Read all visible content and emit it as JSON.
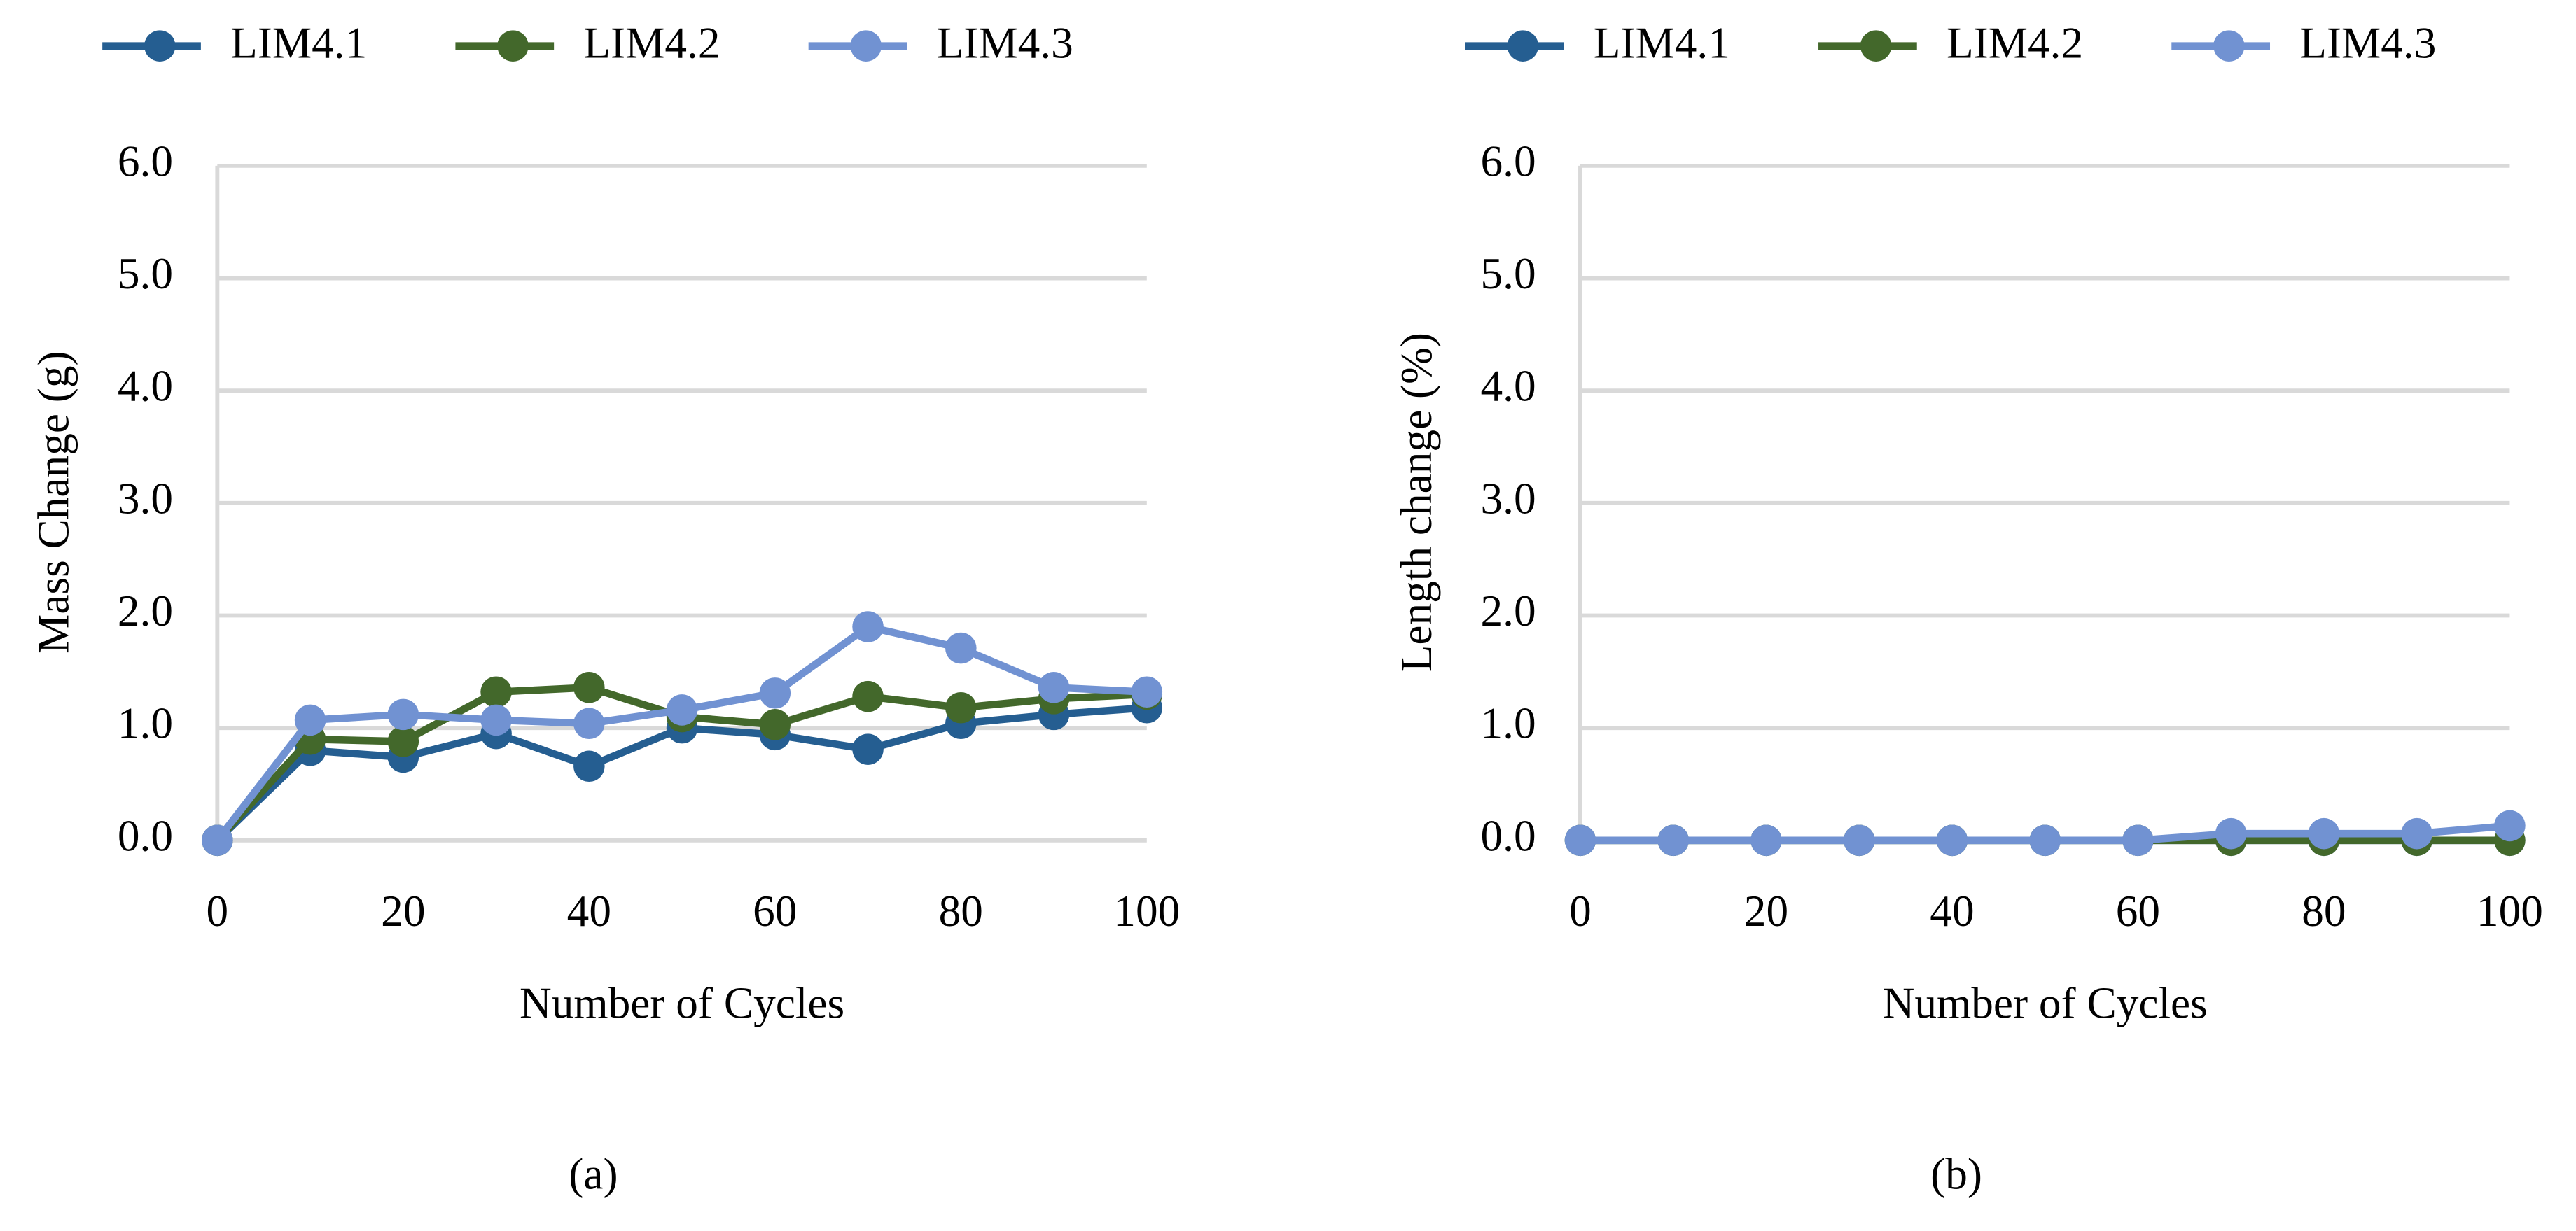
{
  "chart_data": [
    {
      "type": "line",
      "caption": "(a)",
      "x_label": "Number of Cycles",
      "y_label": "Mass Change (g)",
      "x": [
        0,
        10,
        20,
        30,
        40,
        50,
        60,
        70,
        80,
        90,
        100
      ],
      "series": [
        {
          "name": "LIM4.1",
          "color": "#255e91",
          "values": [
            0,
            0.8,
            0.74,
            0.95,
            0.66,
            1.0,
            0.94,
            0.81,
            1.04,
            1.12,
            1.18
          ]
        },
        {
          "name": "LIM4.2",
          "color": "#43682b",
          "values": [
            0,
            0.9,
            0.88,
            1.32,
            1.36,
            1.1,
            1.03,
            1.28,
            1.18,
            1.26,
            1.3
          ]
        },
        {
          "name": "LIM4.3",
          "color": "#7192d2",
          "values": [
            0,
            1.07,
            1.12,
            1.07,
            1.04,
            1.16,
            1.31,
            1.9,
            1.71,
            1.36,
            1.32
          ]
        }
      ],
      "xlim": [
        0,
        100
      ],
      "xticks": [
        0,
        20,
        40,
        60,
        80,
        100
      ],
      "ylim": [
        0,
        6
      ],
      "yticks": [
        {
          "value": 0,
          "label": "0.0"
        },
        {
          "value": 1,
          "label": "1.0"
        },
        {
          "value": 2,
          "label": "2.0"
        },
        {
          "value": 3,
          "label": "3.0"
        },
        {
          "value": 4,
          "label": "4.0"
        },
        {
          "value": 5,
          "label": "5.0"
        },
        {
          "value": 6,
          "label": "6.0"
        }
      ],
      "grid": true,
      "legend": "top"
    },
    {
      "type": "line",
      "caption": "(b)",
      "x_label": "Number of Cycles",
      "y_label": "Length change (%)",
      "x": [
        0,
        10,
        20,
        30,
        40,
        50,
        60,
        70,
        80,
        90,
        100
      ],
      "series": [
        {
          "name": "LIM4.1",
          "color": "#255e91",
          "values": [
            0,
            0,
            0,
            0,
            0,
            0,
            0,
            0,
            0,
            0,
            0
          ]
        },
        {
          "name": "LIM4.2",
          "color": "#43682b",
          "values": [
            0,
            0,
            0,
            0,
            0,
            0,
            0,
            0,
            0,
            0,
            0
          ]
        },
        {
          "name": "LIM4.3",
          "color": "#7192d2",
          "values": [
            0,
            0,
            0,
            0,
            0,
            0,
            0,
            0.06,
            0.06,
            0.06,
            0.13
          ]
        }
      ],
      "xlim": [
        0,
        100
      ],
      "xticks": [
        0,
        20,
        40,
        60,
        80,
        100
      ],
      "ylim": [
        0,
        6
      ],
      "yticks": [
        {
          "value": 0,
          "label": "0.0"
        },
        {
          "value": 1,
          "label": "1.0"
        },
        {
          "value": 2,
          "label": "2.0"
        },
        {
          "value": 3,
          "label": "3.0"
        },
        {
          "value": 4,
          "label": "4.0"
        },
        {
          "value": 5,
          "label": "5.0"
        },
        {
          "value": 6,
          "label": "6.0"
        }
      ],
      "grid": true,
      "legend": "top"
    }
  ]
}
